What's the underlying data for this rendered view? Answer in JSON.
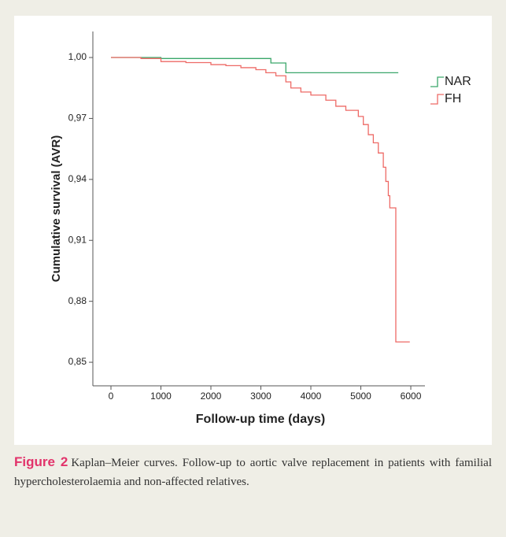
{
  "chart_data": {
    "type": "step",
    "x_label": "Follow-up time (days)",
    "y_label": "Cumulative survival (AVR)",
    "xlim": [
      -362,
      6283
    ],
    "ylim": [
      0.8384,
      1.0128
    ],
    "xticks": [
      0,
      1000,
      2000,
      3000,
      4000,
      5000,
      6000
    ],
    "yticks": [
      {
        "value": 1.0,
        "label": "1,00"
      },
      {
        "value": 0.97,
        "label": "0,97"
      },
      {
        "value": 0.94,
        "label": "0,94"
      },
      {
        "value": 0.91,
        "label": "0,91"
      },
      {
        "value": 0.88,
        "label": "0,88"
      },
      {
        "value": 0.85,
        "label": "0,85"
      }
    ],
    "series": [
      {
        "name": "NAR",
        "color": "#3aa66a",
        "x": [
          0,
          1000,
          3200,
          3500,
          5750
        ],
        "values": [
          1.0,
          0.9995,
          0.9973,
          0.9925,
          0.9925
        ]
      },
      {
        "name": "FH",
        "color": "#ee6a66",
        "x": [
          0,
          600,
          1000,
          1500,
          2000,
          2300,
          2600,
          2900,
          3100,
          3300,
          3500,
          3600,
          3800,
          4000,
          4300,
          4500,
          4700,
          4950,
          5050,
          5150,
          5250,
          5350,
          5450,
          5500,
          5550,
          5580,
          5700,
          5980
        ],
        "values": [
          1.0,
          0.9995,
          0.998,
          0.9975,
          0.9965,
          0.996,
          0.995,
          0.994,
          0.9925,
          0.991,
          0.988,
          0.985,
          0.983,
          0.9815,
          0.979,
          0.976,
          0.974,
          0.971,
          0.967,
          0.962,
          0.958,
          0.953,
          0.946,
          0.939,
          0.932,
          0.926,
          0.86,
          0.86
        ]
      }
    ]
  },
  "figure": {
    "label": "Figure 2",
    "caption": "Kaplan–Meier curves. Follow-up to aortic valve replacement in patients with familial hypercholesterolaemia and non-affected relatives."
  }
}
